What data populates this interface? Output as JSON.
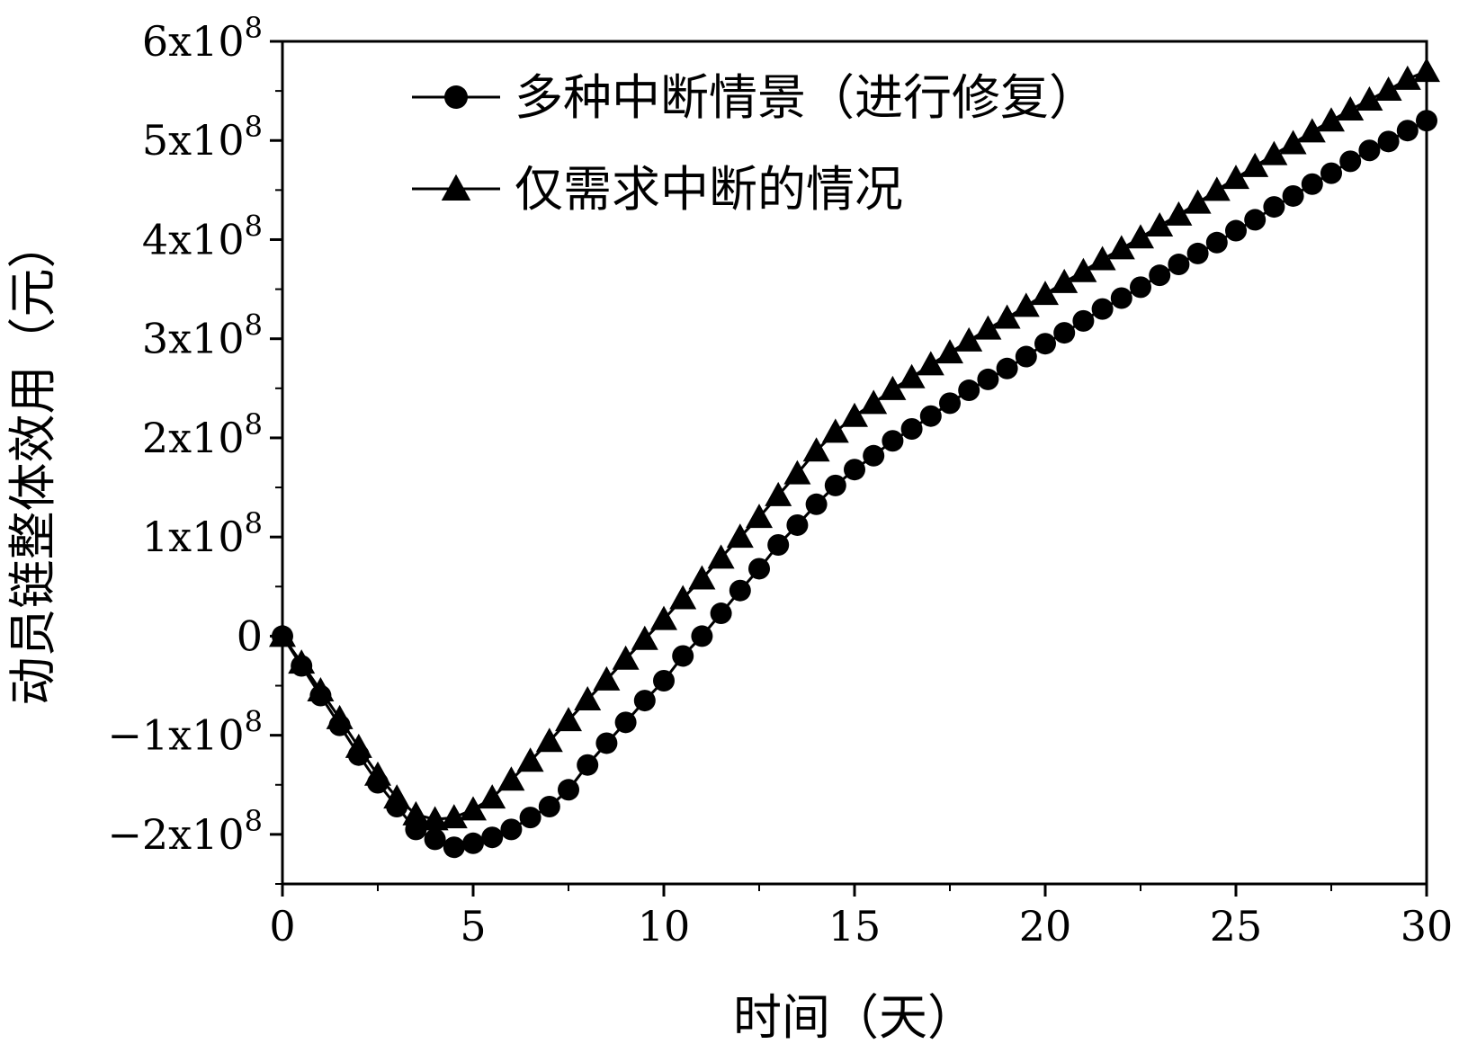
{
  "chart_data": {
    "type": "line",
    "title": "",
    "xlabel": "时间（天）",
    "ylabel": "动员链整体效用（元）",
    "xlim": [
      0,
      30
    ],
    "ylim": [
      -250000000,
      600000000
    ],
    "x_ticks": [
      0,
      5,
      10,
      15,
      20,
      25,
      30
    ],
    "x_tick_labels": [
      "0",
      "5",
      "10",
      "15",
      "20",
      "25",
      "30"
    ],
    "y_ticks": [
      -200000000,
      -100000000,
      0,
      100000000,
      200000000,
      300000000,
      400000000,
      500000000,
      600000000
    ],
    "y_tick_labels": [
      {
        "mant": "−2x10",
        "exp": "8"
      },
      {
        "mant": "−1x10",
        "exp": "8"
      },
      {
        "mant": "0",
        "exp": ""
      },
      {
        "mant": "1x10",
        "exp": "8"
      },
      {
        "mant": "2x10",
        "exp": "8"
      },
      {
        "mant": "3x10",
        "exp": "8"
      },
      {
        "mant": "4x10",
        "exp": "8"
      },
      {
        "mant": "5x10",
        "exp": "8"
      },
      {
        "mant": "6x10",
        "exp": "8"
      }
    ],
    "grid": false,
    "legend_position": "top-left",
    "x": [
      0,
      0.5,
      1,
      1.5,
      2,
      2.5,
      3,
      3.5,
      4,
      4.5,
      5,
      5.5,
      6,
      6.5,
      7,
      7.5,
      8,
      8.5,
      9,
      9.5,
      10,
      10.5,
      11,
      11.5,
      12,
      12.5,
      13,
      13.5,
      14,
      14.5,
      15,
      15.5,
      16,
      16.5,
      17,
      17.5,
      18,
      18.5,
      19,
      19.5,
      20,
      20.5,
      21,
      21.5,
      22,
      22.5,
      23,
      23.5,
      24,
      24.5,
      25,
      25.5,
      26,
      26.5,
      27,
      27.5,
      28,
      28.5,
      29,
      29.5,
      30
    ],
    "series": [
      {
        "name": "多种中断情景（进行修复）",
        "marker": "circle",
        "color": "#000000",
        "values": [
          0,
          -30000000,
          -60000000,
          -90000000,
          -120000000,
          -148000000,
          -172000000,
          -195000000,
          -205000000,
          -213000000,
          -209000000,
          -203000000,
          -195000000,
          -183000000,
          -172000000,
          -155000000,
          -130000000,
          -108000000,
          -87000000,
          -65000000,
          -45000000,
          -20000000,
          0,
          23000000,
          46000000,
          68000000,
          92000000,
          112000000,
          133000000,
          152000000,
          168000000,
          182000000,
          197000000,
          209000000,
          222000000,
          235000000,
          248000000,
          259000000,
          270000000,
          282000000,
          295000000,
          306000000,
          318000000,
          330000000,
          341000000,
          352000000,
          364000000,
          375000000,
          386000000,
          397000000,
          409000000,
          420000000,
          433000000,
          444000000,
          456000000,
          467000000,
          479000000,
          490000000,
          499000000,
          510000000,
          520000000
        ]
      },
      {
        "name": "仅需求中断的情况",
        "marker": "triangle",
        "color": "#000000",
        "values": [
          0,
          -27000000,
          -55000000,
          -83000000,
          -112000000,
          -140000000,
          -163000000,
          -180000000,
          -185000000,
          -183000000,
          -175000000,
          -163000000,
          -145000000,
          -126000000,
          -106000000,
          -85000000,
          -64000000,
          -44000000,
          -23000000,
          -3000000,
          17000000,
          38000000,
          58000000,
          79000000,
          100000000,
          120000000,
          142000000,
          164000000,
          187000000,
          206000000,
          222000000,
          235000000,
          249000000,
          261000000,
          274000000,
          286000000,
          298000000,
          310000000,
          321000000,
          333000000,
          345000000,
          357000000,
          368000000,
          380000000,
          391000000,
          402000000,
          414000000,
          425000000,
          437000000,
          450000000,
          462000000,
          474000000,
          486000000,
          497000000,
          509000000,
          520000000,
          531000000,
          541000000,
          551000000,
          562000000,
          570000000
        ]
      }
    ]
  }
}
